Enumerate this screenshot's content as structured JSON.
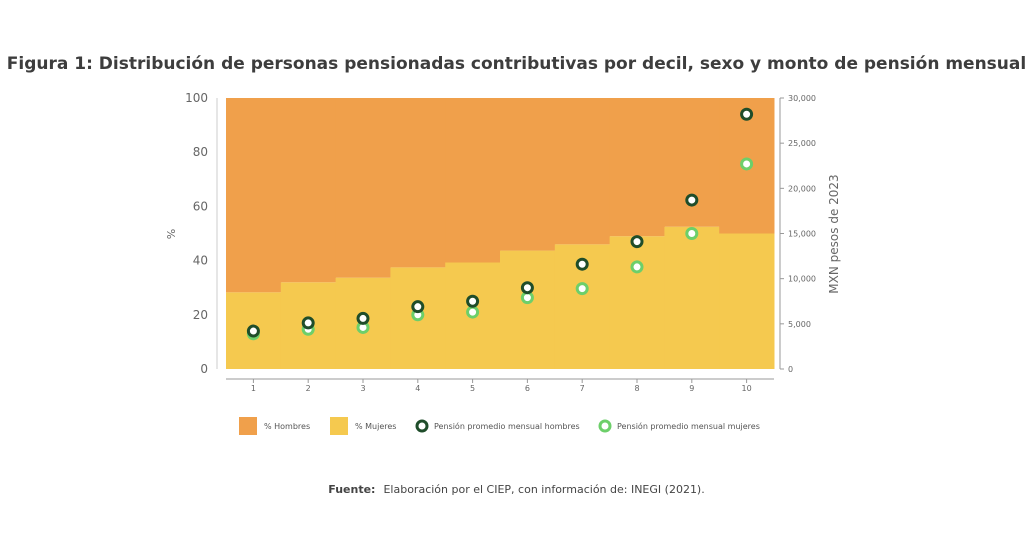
{
  "figure": {
    "title": "Figura 1: Distribución de personas pensionadas contributivas por decil, sexo y monto de pensión mensual",
    "source_label": "Fuente:",
    "source_text": "Elaboración por el CIEP, con información de: INEGI (2021)."
  },
  "colors": {
    "hombres": "#F0A04B",
    "mujeres": "#F5C94F",
    "pension_hombres": "#1F4D2A",
    "pension_mujeres": "#6DCF6A",
    "axis_text": "#666666"
  },
  "chart_data": {
    "type": "bar",
    "categories": [
      "1",
      "2",
      "3",
      "4",
      "5",
      "6",
      "7",
      "8",
      "9",
      "10"
    ],
    "series": [
      {
        "name": "% Hombres",
        "axis": "left",
        "kind": "stacked-bar",
        "values": [
          71.7,
          68.0,
          66.3,
          62.5,
          60.7,
          56.3,
          54.0,
          51.0,
          47.5,
          50.0
        ]
      },
      {
        "name": "% Mujeres",
        "axis": "left",
        "kind": "stacked-bar",
        "values": [
          28.3,
          32.0,
          33.7,
          37.5,
          39.3,
          43.7,
          46.0,
          49.0,
          52.5,
          50.0
        ]
      },
      {
        "name": "Pensión promedio mensual hombres",
        "axis": "right",
        "kind": "scatter",
        "values": [
          4200,
          5100,
          5600,
          6900,
          7500,
          9000,
          11600,
          14100,
          18700,
          28200
        ]
      },
      {
        "name": "Pensión promedio mensual mujeres",
        "axis": "right",
        "kind": "scatter",
        "values": [
          3900,
          4400,
          4600,
          6000,
          6300,
          7900,
          8900,
          11300,
          15000,
          22700
        ]
      }
    ],
    "ylabel": "%",
    "y2label": "MXN pesos de 2023",
    "ylim": [
      0,
      100
    ],
    "y2lim": [
      0,
      30000
    ],
    "yticks": [
      "0",
      "20",
      "40",
      "60",
      "80",
      "100"
    ],
    "y2ticks": [
      "0",
      "5,000",
      "10,000",
      "15,000",
      "20,000",
      "25,000",
      "30,000"
    ],
    "grid": false,
    "legend_position": "bottom"
  }
}
